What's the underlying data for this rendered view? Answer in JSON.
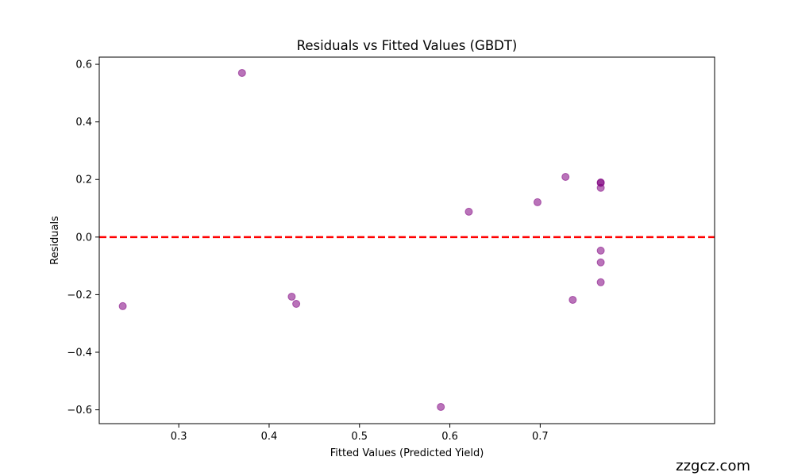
{
  "chart_data": {
    "type": "scatter",
    "title": "Residuals vs Fitted Values (GBDT)",
    "xlabel": "Fitted Values (Predicted Yield)",
    "ylabel": "Residuals",
    "xlim": [
      0.212,
      0.893
    ],
    "ylim": [
      -0.648,
      0.625
    ],
    "xticks": [
      0.3,
      0.4,
      0.5,
      0.6,
      0.7
    ],
    "xtick_labels": [
      "0.3",
      "0.4",
      "0.5",
      "0.6",
      "0.7"
    ],
    "yticks": [
      -0.6,
      -0.4,
      -0.2,
      0.0,
      0.2,
      0.4,
      0.6
    ],
    "ytick_labels": [
      "−0.6",
      "−0.4",
      "−0.2",
      "0.0",
      "0.2",
      "0.4",
      "0.6"
    ],
    "grid": false,
    "reference_line": {
      "y": 0.0,
      "color": "#ff0000",
      "style": "dashed"
    },
    "marker_color": "#800080",
    "points": [
      {
        "x": 0.238,
        "y": -0.24
      },
      {
        "x": 0.37,
        "y": 0.57
      },
      {
        "x": 0.425,
        "y": -0.207
      },
      {
        "x": 0.43,
        "y": -0.232
      },
      {
        "x": 0.59,
        "y": -0.59
      },
      {
        "x": 0.621,
        "y": 0.088
      },
      {
        "x": 0.697,
        "y": 0.121
      },
      {
        "x": 0.728,
        "y": 0.209
      },
      {
        "x": 0.736,
        "y": -0.218
      },
      {
        "x": 0.767,
        "y": 0.19
      },
      {
        "x": 0.767,
        "y": 0.188
      },
      {
        "x": 0.767,
        "y": 0.171
      },
      {
        "x": 0.767,
        "y": -0.047
      },
      {
        "x": 0.767,
        "y": -0.088
      },
      {
        "x": 0.767,
        "y": -0.157
      }
    ]
  },
  "watermark": "zzgcz.com"
}
